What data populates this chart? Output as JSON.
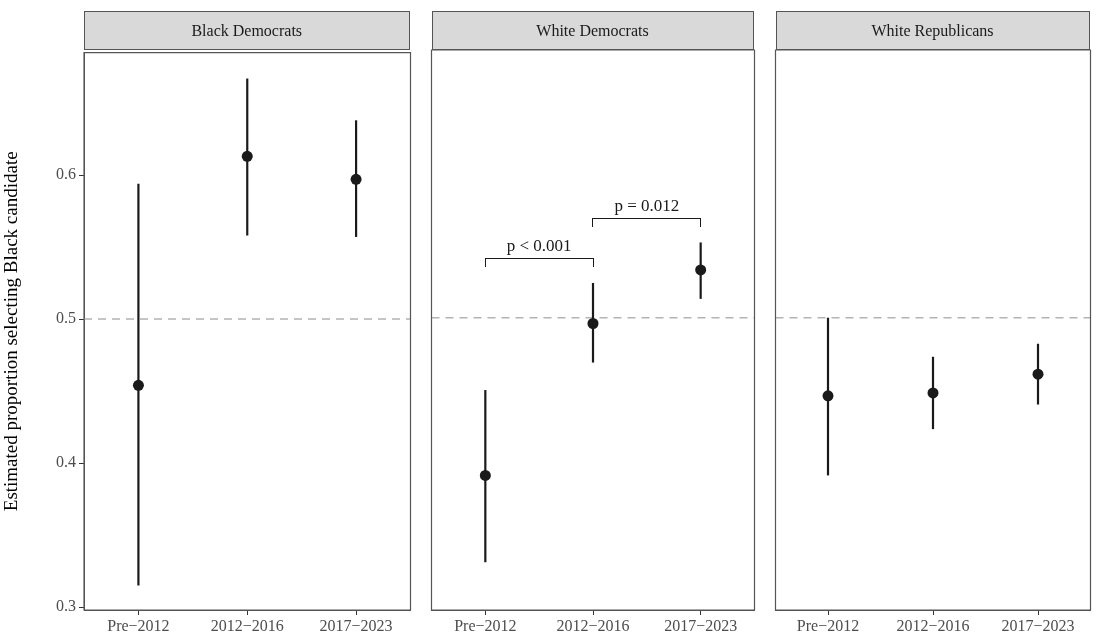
{
  "chart_data": [
    {
      "type": "scatter",
      "title": "Black Democrats",
      "ylabel": "Estimated proportion selecting Black candidate",
      "categories": [
        "Pre−2012",
        "2012−2016",
        "2017−2023"
      ],
      "series": [
        {
          "color": "#1a1a1a",
          "values": [
            0.454,
            0.613,
            0.597
          ],
          "errors": [
            [
              0.315,
              0.594
            ],
            [
              0.558,
              0.667
            ],
            [
              0.557,
              0.638
            ]
          ]
        }
      ],
      "ylim": [
        0.298,
        0.685
      ],
      "yticks": [
        0.3,
        0.4,
        0.5,
        0.6
      ],
      "grid": false,
      "legend": false,
      "marker": "circle",
      "ref_lines": [
        {
          "axis": "y",
          "value": 0.5,
          "color": "#b3b3b3",
          "line_style": "dashed"
        }
      ]
    },
    {
      "type": "scatter",
      "title": "White Democrats",
      "categories": [
        "Pre−2012",
        "2012−2016",
        "2017−2023"
      ],
      "series": [
        {
          "color": "#1a1a1a",
          "values": [
            0.391,
            0.496,
            0.533
          ],
          "errors": [
            [
              0.331,
              0.45
            ],
            [
              0.469,
              0.524
            ],
            [
              0.513,
              0.552
            ]
          ]
        }
      ],
      "ylim": [
        0.298,
        0.685
      ],
      "yticks": [
        0.3,
        0.4,
        0.5,
        0.6
      ],
      "tick_labels": "x",
      "grid": false,
      "legend": false,
      "marker": "circle",
      "ref_lines": [
        {
          "axis": "y",
          "value": 0.5,
          "color": "#b3b3b3",
          "line_style": "dashed"
        }
      ],
      "annotations": [
        "p < 0.001",
        "p = 0.012"
      ]
    },
    {
      "type": "scatter",
      "title": "White Republicans",
      "categories": [
        "Pre−2012",
        "2012−2016",
        "2017−2023"
      ],
      "series": [
        {
          "color": "#1a1a1a",
          "values": [
            0.446,
            0.448,
            0.461
          ],
          "errors": [
            [
              0.391,
              0.5
            ],
            [
              0.423,
              0.473
            ],
            [
              0.44,
              0.482
            ]
          ]
        }
      ],
      "ylim": [
        0.298,
        0.685
      ],
      "yticks": [
        0.3,
        0.4,
        0.5,
        0.6
      ],
      "tick_labels": "x",
      "grid": false,
      "legend": false,
      "marker": "circle",
      "ref_lines": [
        {
          "axis": "y",
          "value": 0.5,
          "color": "#b3b3b3",
          "line_style": "dashed"
        }
      ]
    }
  ]
}
